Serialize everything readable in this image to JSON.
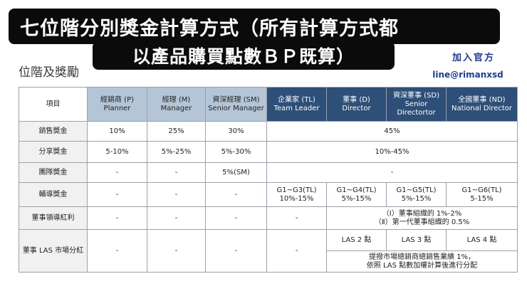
{
  "header": {
    "line1": "七位階分別獎金計算方式（所有計算方式都",
    "line2": "以產品購買點數ＢＰ既算）",
    "section_title": "位階及獎勵",
    "join": "加入官方",
    "line_id": "line@rimanxsd"
  },
  "table": {
    "columns": [
      {
        "zh": "項目",
        "en": ""
      },
      {
        "zh": "經銷商 (P)",
        "en": "Planner"
      },
      {
        "zh": "經理 (M)",
        "en": "Manager"
      },
      {
        "zh": "資深經理 (SM)",
        "en": "Senior Manager"
      },
      {
        "zh": "企業家 (TL)",
        "en": "Team Leader"
      },
      {
        "zh": "董事 (D)",
        "en": "Director"
      },
      {
        "zh": "資深董事 (SD)",
        "en": "Senior Directortor"
      },
      {
        "zh": "全國董事 (ND)",
        "en": "National Director"
      }
    ],
    "rows": {
      "sales": {
        "label": "銷售獎金",
        "p": "10%",
        "m": "25%",
        "sm": "30%",
        "rest": "45%"
      },
      "share": {
        "label": "分享獎金",
        "p": "5-10%",
        "m": "5%-25%",
        "sm": "5%-30%",
        "rest": "10%-45%"
      },
      "team": {
        "label": "團隊獎金",
        "p": "-",
        "m": "-",
        "sm": "5%(SM)",
        "rest": "-"
      },
      "coach": {
        "label": "輔導獎金",
        "p": "-",
        "m": "-",
        "sm": "-",
        "tl": [
          "G1~G3(TL)",
          "10%-15%"
        ],
        "d": [
          "G1~G4(TL)",
          "5%-15%"
        ],
        "sd": [
          "G1~G5(TL)",
          "5%-15%"
        ],
        "nd": [
          "G1~G6(TL)",
          "5-15%"
        ]
      },
      "leader": {
        "label": "董事領導紅利",
        "p": "-",
        "m": "-",
        "sm": "-",
        "tl": "-",
        "note1": "（Ⅰ）董事組織的 1%-2%",
        "note2": "（Ⅱ）第一代董事組織的 0.5%"
      },
      "las": {
        "label": "董事 LAS 市場分紅",
        "p": "-",
        "m": "-",
        "sm": "-",
        "tl": "-",
        "d": "LAS 2 點",
        "sd": "LAS 3 點",
        "nd": "LAS 4 點",
        "note1": "提撥市場總銷商總銷售業績 1%，",
        "note2": "依照 LAS 點數加權計算後進行分配"
      }
    }
  }
}
